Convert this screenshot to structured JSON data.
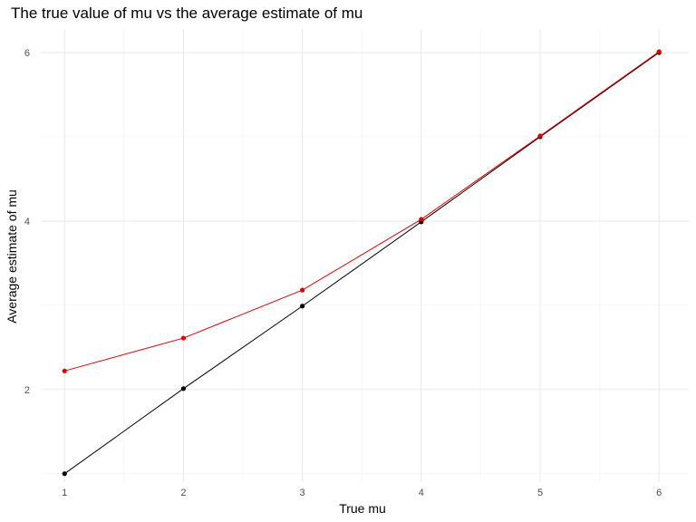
{
  "chart_data": {
    "type": "line",
    "title": "The true value of mu vs the average estimate of mu",
    "xlabel": "True mu",
    "ylabel": "Average estimate of mu",
    "x": [
      1,
      2,
      3,
      4,
      5,
      6
    ],
    "xlim": [
      0.8,
      6.25
    ],
    "ylim": [
      0.9,
      6.28
    ],
    "xticks": [
      1,
      2,
      3,
      4,
      5,
      6
    ],
    "yticks": [
      2,
      4,
      6
    ],
    "grid": true,
    "legend": "none",
    "series": [
      {
        "color": "#000000",
        "values": [
          1.0,
          2.01,
          2.99,
          3.99,
          5.0,
          6.0
        ]
      },
      {
        "color": "#e00000",
        "values": [
          2.22,
          2.61,
          3.18,
          4.02,
          5.01,
          6.01
        ]
      }
    ]
  }
}
